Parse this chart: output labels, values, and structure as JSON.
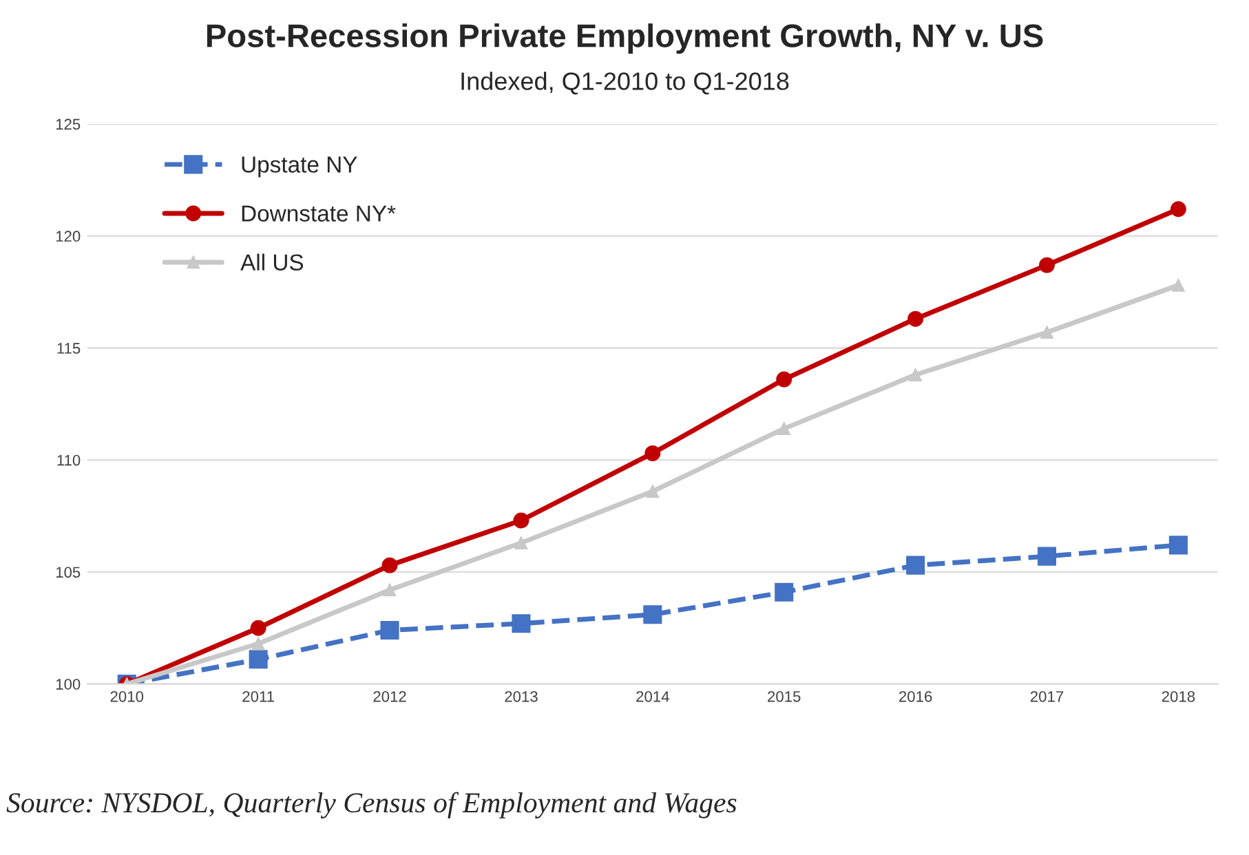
{
  "chart_data": {
    "type": "line",
    "title": "Post-Recession Private Employment Growth, NY v. US",
    "subtitle": "Indexed, Q1-2010 to Q1-2018",
    "categories": [
      "2010",
      "2011",
      "2012",
      "2013",
      "2014",
      "2015",
      "2016",
      "2017",
      "2018"
    ],
    "series": [
      {
        "name": "Upstate NY",
        "color": "#4472c4",
        "marker": "square",
        "line_style": "dashed",
        "values": [
          100,
          101.1,
          102.4,
          102.7,
          103.1,
          104.1,
          105.3,
          105.7,
          106.2
        ]
      },
      {
        "name": "Downstate NY*",
        "color": "#c00000",
        "marker": "circle",
        "line_style": "solid",
        "values": [
          100,
          102.5,
          105.3,
          107.3,
          110.3,
          113.6,
          116.3,
          118.7,
          121.2
        ]
      },
      {
        "name": "All US",
        "color": "#c8c8c8",
        "marker": "triangle",
        "line_style": "solid",
        "values": [
          100,
          101.8,
          104.2,
          106.3,
          108.6,
          111.4,
          113.8,
          115.7,
          117.8
        ]
      }
    ],
    "ylim": [
      100,
      125
    ],
    "yticks": [
      100,
      105,
      110,
      115,
      120,
      125
    ],
    "grid": "y",
    "legend": "top left",
    "annotations": [
      "Source: NYSDOL, Quarterly Census of Employment and Wages"
    ]
  }
}
